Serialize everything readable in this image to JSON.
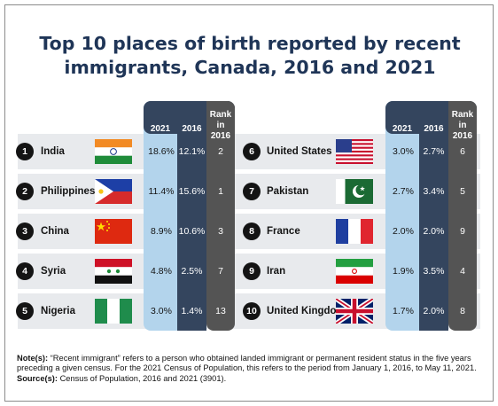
{
  "chart_data": {
    "type": "table",
    "title": "Top 10 places of birth reported by recent immigrants, Canada, 2016 and 2021",
    "columns": {
      "y2021": "2021",
      "y2016": "2016",
      "rank": "Rank in 2016"
    },
    "rows": [
      {
        "n": "1",
        "country": "India",
        "flag": "india-flag",
        "v2021": "18.6%",
        "v2016": "12.1%",
        "rank2016": "2"
      },
      {
        "n": "2",
        "country": "Philippines",
        "flag": "philippines-flag",
        "v2021": "11.4%",
        "v2016": "15.6%",
        "rank2016": "1"
      },
      {
        "n": "3",
        "country": "China",
        "flag": "china-flag",
        "v2021": "8.9%",
        "v2016": "10.6%",
        "rank2016": "3"
      },
      {
        "n": "4",
        "country": "Syria",
        "flag": "syria-flag",
        "v2021": "4.8%",
        "v2016": "2.5%",
        "rank2016": "7"
      },
      {
        "n": "5",
        "country": "Nigeria",
        "flag": "nigeria-flag",
        "v2021": "3.0%",
        "v2016": "1.4%",
        "rank2016": "13"
      },
      {
        "n": "6",
        "country": "United States",
        "flag": "usa-flag",
        "v2021": "3.0%",
        "v2016": "2.7%",
        "rank2016": "6"
      },
      {
        "n": "7",
        "country": "Pakistan",
        "flag": "pakistan-flag",
        "v2021": "2.7%",
        "v2016": "3.4%",
        "rank2016": "5"
      },
      {
        "n": "8",
        "country": "France",
        "flag": "france-flag",
        "v2021": "2.0%",
        "v2016": "2.0%",
        "rank2016": "9"
      },
      {
        "n": "9",
        "country": "Iran",
        "flag": "iran-flag",
        "v2021": "1.9%",
        "v2016": "3.5%",
        "rank2016": "4"
      },
      {
        "n": "10",
        "country": "United Kingdom",
        "flag": "uk-flag",
        "v2021": "1.7%",
        "v2016": "2.0%",
        "rank2016": "8"
      }
    ],
    "colors": {
      "col2021": "#b3d4ec",
      "col2016": "#34455e",
      "colRank": "#545454",
      "band": "#e8eaed"
    }
  },
  "notes": {
    "note_label": "Note(s):",
    "note_text": " “Recent immigrant” refers to a person who obtained landed immigrant or permanent resident status in the five years preceding a given census. For the 2021 Census of Population, this refers to the period from January 1, 2016, to May 11, 2021.",
    "source_label": "Source(s):",
    "source_text": " Census of Population, 2016 and 2021 (3901)."
  }
}
